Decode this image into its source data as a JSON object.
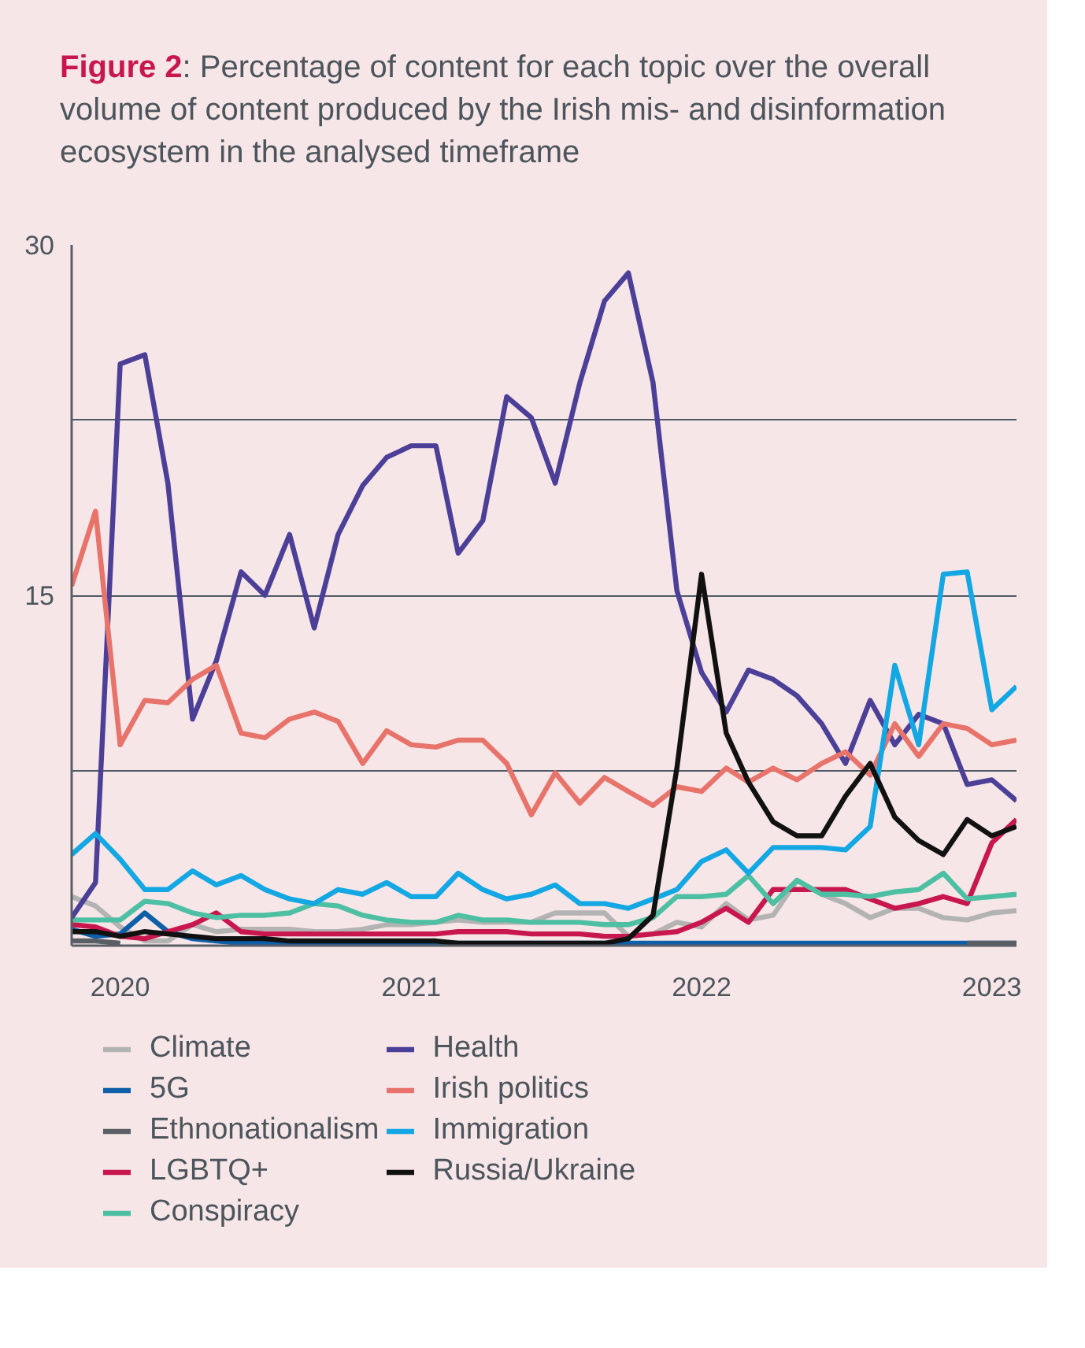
{
  "chart_data": {
    "type": "line",
    "title": "Figure 2: Percentage of content for each topic over the overall volume of content produced by the Irish mis- and disinformation ecosystem in the analysed timeframe",
    "x": [
      "2019-11",
      "2019-12",
      "2020-01",
      "2020-02",
      "2020-03",
      "2020-04",
      "2020-05",
      "2020-06",
      "2020-07",
      "2020-08",
      "2020-09",
      "2020-10",
      "2020-11",
      "2020-12",
      "2021-01",
      "2021-02",
      "2021-03",
      "2021-04",
      "2021-05",
      "2021-06",
      "2021-07",
      "2021-08",
      "2021-09",
      "2021-10",
      "2021-11",
      "2021-12",
      "2022-01",
      "2022-02",
      "2022-03",
      "2022-04",
      "2022-05",
      "2022-06",
      "2022-07",
      "2022-08",
      "2022-09",
      "2022-10",
      "2022-11",
      "2022-12",
      "2023-01",
      "2023-02"
    ],
    "xlim": [
      "2019-11",
      "2023-02"
    ],
    "xticks": [
      {
        "value": "2020-01",
        "label": "2020"
      },
      {
        "value": "2021-01",
        "label": "2021"
      },
      {
        "value": "2022-01",
        "label": "2022"
      },
      {
        "value": "2023-01",
        "label": "2023"
      }
    ],
    "ylim": [
      0,
      30
    ],
    "yticks": [
      {
        "value": 0,
        "label": null
      },
      {
        "value": 7.5,
        "label": null
      },
      15,
      {
        "value": 22.5,
        "label": null
      },
      30
    ],
    "grid": "y",
    "legend": "bottom",
    "line_style": "solid",
    "marker": "none",
    "series": [
      {
        "name": "Climate",
        "color": "#b3b3b3",
        "values": [
          2.1,
          1.7,
          0.8,
          0.2,
          0.2,
          0.9,
          0.6,
          0.7,
          0.7,
          0.7,
          0.6,
          0.6,
          0.7,
          0.9,
          0.9,
          1.0,
          1.1,
          1.0,
          1.0,
          1.0,
          1.4,
          1.4,
          1.4,
          0.4,
          0.5,
          1.0,
          0.8,
          1.8,
          1.1,
          1.3,
          2.8,
          2.2,
          1.8,
          1.2,
          1.6,
          1.6,
          1.2,
          1.1,
          1.4,
          1.5
        ]
      },
      {
        "name": "5G",
        "color": "#0f5fa8",
        "values": [
          0.7,
          0.4,
          0.5,
          1.4,
          0.6,
          0.3,
          0.2,
          0.1,
          0.1,
          0.1,
          0.1,
          0.1,
          0.1,
          0.1,
          0.1,
          0.1,
          0.1,
          0.1,
          0.1,
          0.1,
          0.1,
          0.1,
          0.1,
          0.1,
          0.1,
          0.1,
          0.1,
          0.1,
          0.1,
          0.1,
          0.1,
          0.1,
          0.1,
          0.1,
          0.1,
          0.1,
          0.1,
          0.1,
          0.1,
          0.1
        ]
      },
      {
        "name": "Ethnonationalism",
        "color": "#5a5f66",
        "values": [
          0.2,
          0.2,
          0.1,
          null,
          null,
          null,
          null,
          null,
          null,
          null,
          null,
          null,
          null,
          null,
          null,
          null,
          null,
          null,
          null,
          null,
          null,
          null,
          null,
          null,
          null,
          null,
          null,
          null,
          null,
          null,
          null,
          null,
          null,
          null,
          null,
          null,
          null,
          0.1,
          0.1,
          0.1
        ]
      },
      {
        "name": "LGBTQ+",
        "color": "#c8174f",
        "values": [
          0.9,
          0.8,
          0.4,
          0.3,
          0.6,
          0.9,
          1.4,
          0.6,
          0.5,
          0.5,
          0.5,
          0.5,
          0.5,
          0.5,
          0.5,
          0.5,
          0.6,
          0.6,
          0.6,
          0.5,
          0.5,
          0.5,
          0.4,
          0.4,
          0.5,
          0.6,
          1.0,
          1.6,
          1.0,
          2.4,
          2.4,
          2.4,
          2.4,
          2.0,
          1.6,
          1.8,
          2.1,
          1.8,
          4.4,
          5.4
        ]
      },
      {
        "name": "Conspiracy",
        "color": "#4dbfa3",
        "values": [
          1.1,
          1.1,
          1.1,
          1.9,
          1.8,
          1.4,
          1.2,
          1.3,
          1.3,
          1.4,
          1.8,
          1.7,
          1.3,
          1.1,
          1.0,
          1.0,
          1.3,
          1.1,
          1.1,
          1.0,
          1.0,
          1.0,
          0.9,
          0.9,
          1.2,
          2.1,
          2.1,
          2.2,
          3.0,
          1.8,
          2.8,
          2.2,
          2.2,
          2.1,
          2.3,
          2.4,
          3.1,
          2.0,
          2.1,
          2.2
        ]
      },
      {
        "name": "Health",
        "color": "#4b3f98",
        "values": [
          1.2,
          2.7,
          24.9,
          25.3,
          19.8,
          9.7,
          12.2,
          16.0,
          15.0,
          17.6,
          13.6,
          17.6,
          19.7,
          20.9,
          21.4,
          21.4,
          16.8,
          18.2,
          23.5,
          22.6,
          19.8,
          24.1,
          27.6,
          28.8,
          24.1,
          15.2,
          11.7,
          10.0,
          11.8,
          11.4,
          10.7,
          9.5,
          7.8,
          10.5,
          8.6,
          9.9,
          9.5,
          6.9,
          7.1,
          6.2
        ]
      },
      {
        "name": "Irish politics",
        "color": "#e8736a",
        "values": [
          15.4,
          18.6,
          8.6,
          10.5,
          10.4,
          11.4,
          12.0,
          9.1,
          8.9,
          9.7,
          10.0,
          9.6,
          7.8,
          9.2,
          8.6,
          8.5,
          8.8,
          8.8,
          7.8,
          5.6,
          7.4,
          6.1,
          7.2,
          6.6,
          6.0,
          6.8,
          6.6,
          7.6,
          7.0,
          7.6,
          7.1,
          7.8,
          8.3,
          7.3,
          9.5,
          8.1,
          9.5,
          9.3,
          8.6,
          8.8
        ]
      },
      {
        "name": "Immigration",
        "color": "#13a7e3",
        "values": [
          3.9,
          4.8,
          3.7,
          2.4,
          2.4,
          3.2,
          2.6,
          3.0,
          2.4,
          2.0,
          1.8,
          2.4,
          2.2,
          2.7,
          2.1,
          2.1,
          3.1,
          2.4,
          2.0,
          2.2,
          2.6,
          1.8,
          1.8,
          1.6,
          2.0,
          2.4,
          3.6,
          4.1,
          3.1,
          4.2,
          4.2,
          4.2,
          4.1,
          5.1,
          12.0,
          8.6,
          15.9,
          16.0,
          10.1,
          11.1
        ]
      },
      {
        "name": "Russia/Ukraine",
        "color": "#111111",
        "values": [
          0.6,
          0.6,
          0.4,
          0.6,
          0.5,
          0.4,
          0.3,
          0.3,
          0.3,
          0.2,
          0.2,
          0.2,
          0.2,
          0.2,
          0.2,
          0.2,
          0.1,
          0.1,
          0.1,
          0.1,
          0.1,
          0.1,
          0.1,
          0.3,
          1.3,
          7.6,
          15.9,
          9.1,
          7.0,
          5.3,
          4.7,
          4.7,
          6.4,
          7.8,
          5.5,
          4.5,
          3.9,
          5.4,
          4.7,
          5.1
        ]
      }
    ]
  }
}
